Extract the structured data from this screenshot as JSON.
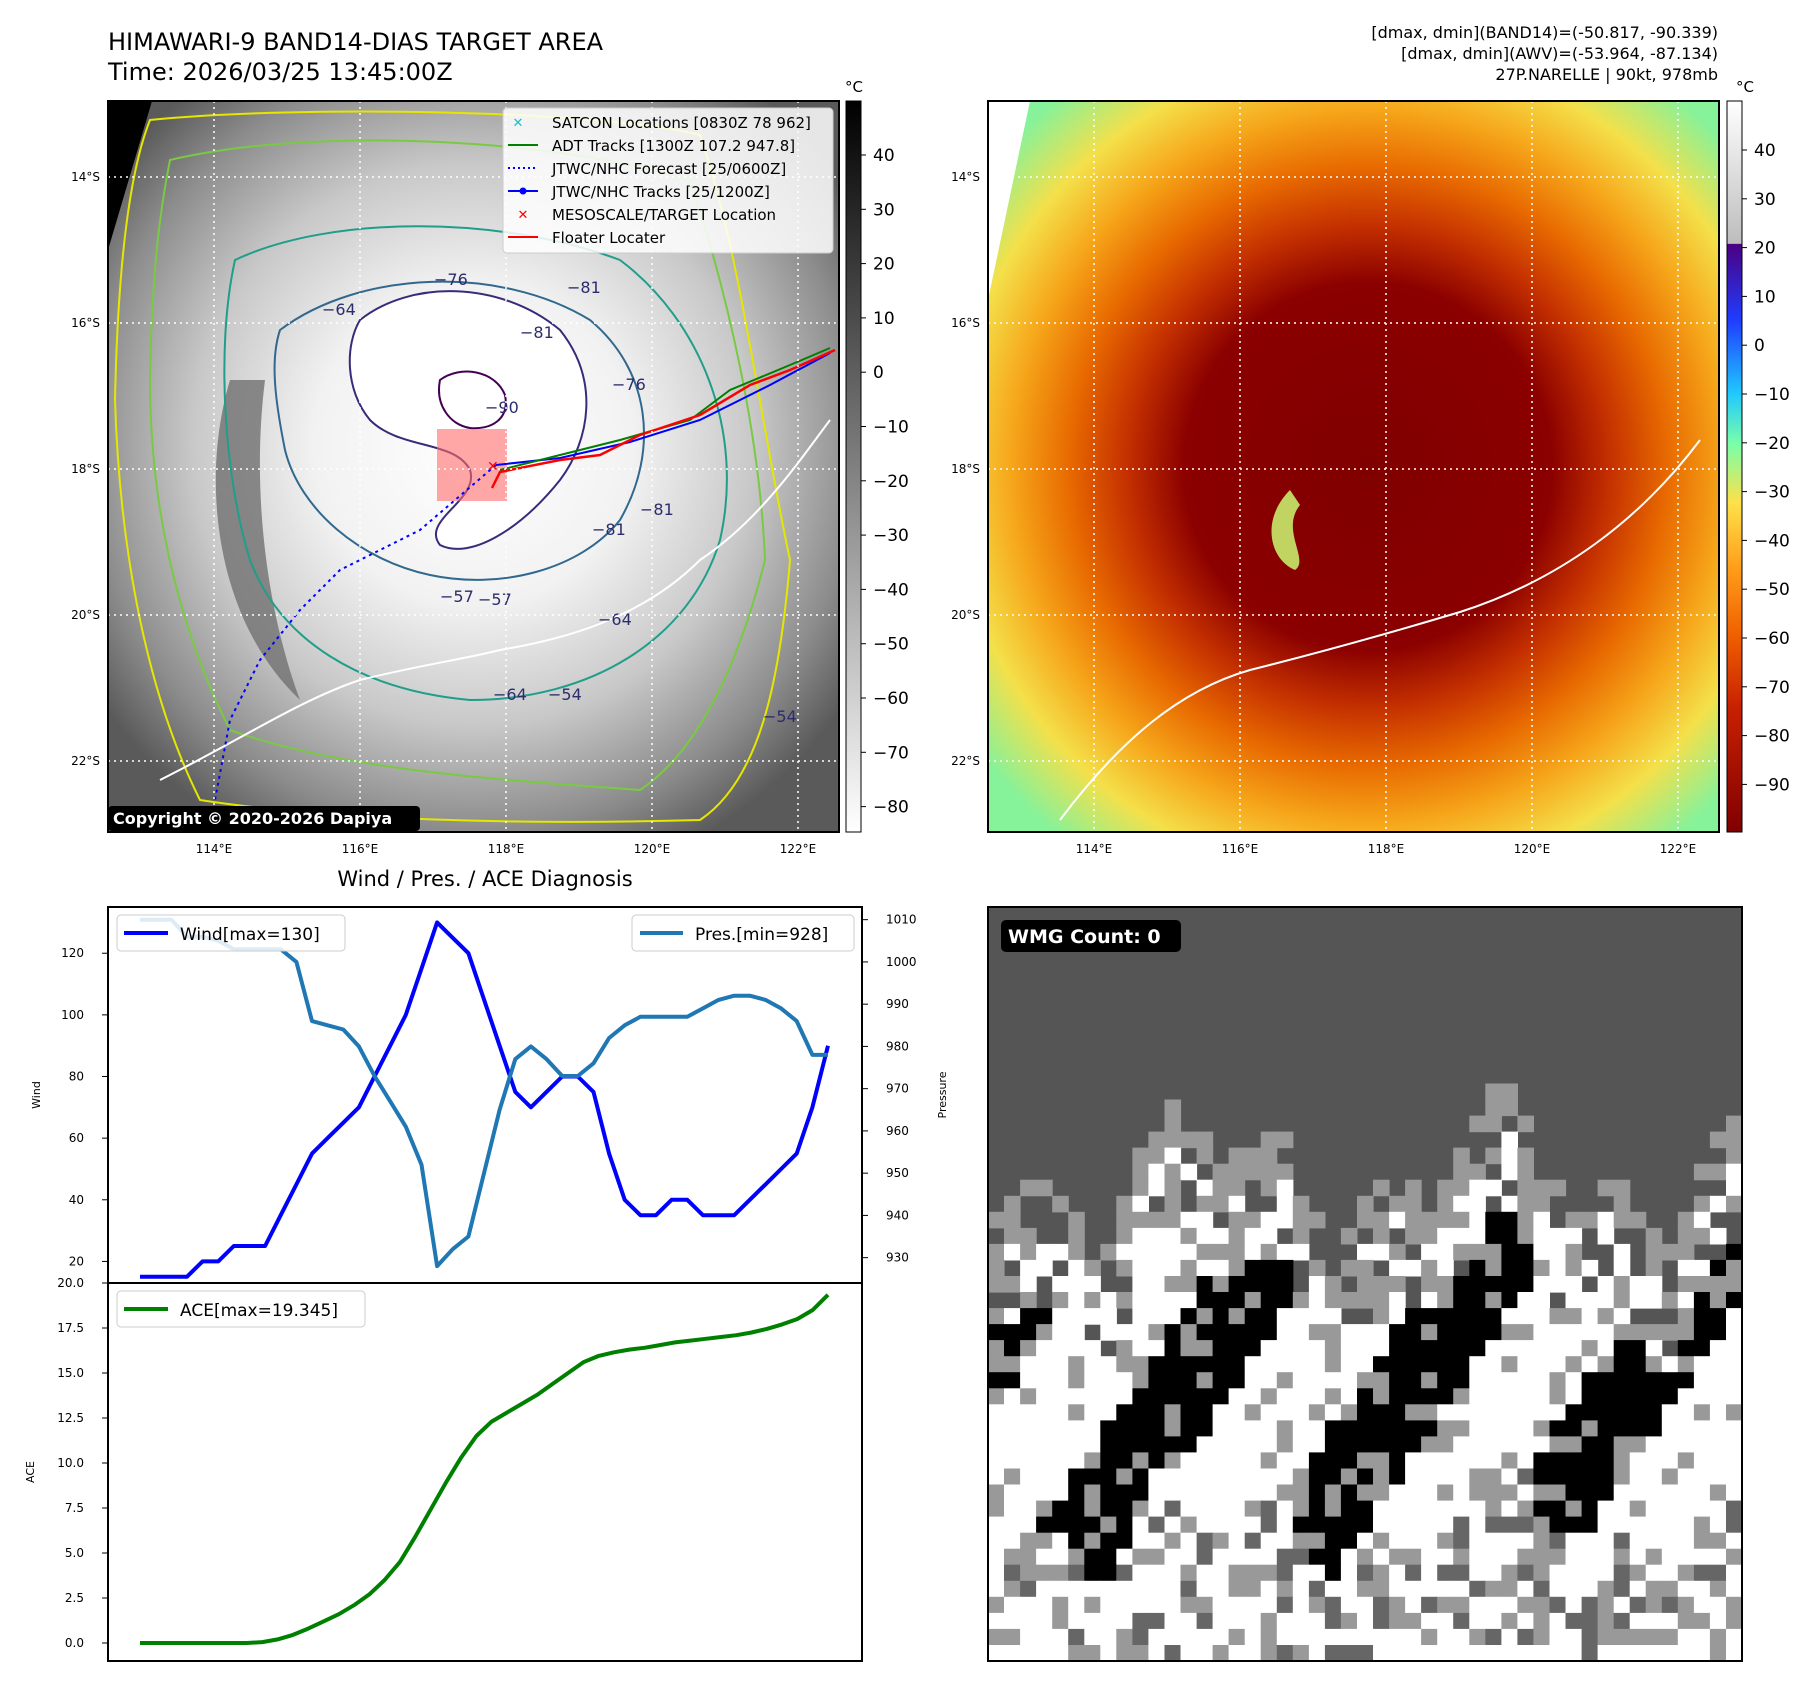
{
  "header": {
    "title_line1": "HIMAWARI-9 BAND14-DIAS TARGET AREA",
    "title_line2": "Time: 2026/03/25 13:45:00Z",
    "stats_line1": "[dmax, dmin](BAND14)=(-50.817, -90.339)",
    "stats_line2": "[dmax, dmin](AWV)=(-53.964, -87.134)",
    "stats_line3": "27P.NARELLE | 90kt, 978mb"
  },
  "map_axes": {
    "lat_labels": [
      "14°S",
      "16°S",
      "18°S",
      "20°S",
      "22°S"
    ],
    "lon_labels": [
      "114°E",
      "116°E",
      "118°E",
      "120°E",
      "122°E"
    ],
    "unit": "°C"
  },
  "ir_panel": {
    "copyright": "Copyright © 2020-2026 Dapiya",
    "colorbar_ticks": [
      "40",
      "30",
      "20",
      "10",
      "0",
      "−10",
      "−20",
      "−30",
      "−40",
      "−50",
      "−60",
      "−70",
      "−80"
    ],
    "contour_labels": [
      "−76",
      "−64",
      "−81",
      "−90",
      "−76",
      "−81",
      "−57",
      "−64",
      "−64",
      "−54",
      "−57",
      "−54",
      "−81",
      "−81"
    ],
    "legend": [
      {
        "label": "SATCON Locations [0830Z 78 962]",
        "color": "#17becf",
        "symbol": "x"
      },
      {
        "label": "ADT Tracks [1300Z 107.2 947.8]",
        "color": "#008000",
        "symbol": "line"
      },
      {
        "label": "JTWC/NHC Forecast [25/0600Z]",
        "color": "#0000ff",
        "symbol": "dotted"
      },
      {
        "label": "JTWC/NHC Tracks [25/1200Z]",
        "color": "#0000ff",
        "symbol": "line-dot"
      },
      {
        "label": "MESOSCALE/TARGET Location",
        "color": "#ff0000",
        "symbol": "x"
      },
      {
        "label": "Floater Locater",
        "color": "#ff0000",
        "symbol": "line"
      }
    ]
  },
  "awv_panel": {
    "colorbar_ticks": [
      "40",
      "30",
      "20",
      "10",
      "0",
      "−10",
      "−20",
      "−30",
      "−40",
      "−50",
      "−60",
      "−70",
      "−80",
      "−90"
    ]
  },
  "wmg_panel": {
    "label": "WMG Count: 0"
  },
  "chart_data": [
    {
      "type": "line",
      "title": "Wind / Pres. / ACE Diagnosis",
      "ylabel": "Wind",
      "y2label": "Pressure",
      "ylim": [
        13,
        135
      ],
      "y2lim": [
        924,
        1013
      ],
      "yticks": [
        "20",
        "40",
        "60",
        "80",
        "100",
        "120"
      ],
      "y2ticks": [
        "930",
        "940",
        "950",
        "960",
        "970",
        "980",
        "990",
        "1000",
        "1010"
      ],
      "series": [
        {
          "name": "Wind[max=130]",
          "axis": "left",
          "color": "#0000ff",
          "values": [
            15,
            15,
            15,
            15,
            20,
            20,
            25,
            25,
            25,
            35,
            45,
            55,
            60,
            65,
            70,
            80,
            90,
            100,
            115,
            130,
            125,
            120,
            105,
            90,
            75,
            70,
            75,
            80,
            80,
            75,
            55,
            40,
            35,
            35,
            40,
            40,
            35,
            35,
            35,
            40,
            45,
            50,
            55,
            70,
            90
          ]
        },
        {
          "name": "Pres.[min=928]",
          "axis": "right",
          "color": "#1f77b4",
          "values": [
            1010,
            1010,
            1010,
            1006,
            1006,
            1005,
            1003,
            1003,
            1003,
            1003,
            1000,
            986,
            985,
            984,
            980,
            973,
            967,
            961,
            952,
            928,
            932,
            935,
            950,
            965,
            977,
            980,
            977,
            973,
            973,
            976,
            982,
            985,
            987,
            987,
            987,
            987,
            989,
            991,
            992,
            992,
            991,
            989,
            986,
            978,
            978
          ]
        }
      ]
    },
    {
      "type": "line",
      "ylabel": "ACE",
      "ylim": [
        -1,
        20
      ],
      "yticks": [
        "0.0",
        "2.5",
        "5.0",
        "7.5",
        "10.0",
        "12.5",
        "15.0",
        "17.5",
        "20.0"
      ],
      "series": [
        {
          "name": "ACE[max=19.345]",
          "color": "#008000",
          "values": [
            0,
            0,
            0,
            0,
            0,
            0,
            0,
            0,
            0.05,
            0.2,
            0.45,
            0.8,
            1.2,
            1.6,
            2.1,
            2.7,
            3.5,
            4.5,
            5.9,
            7.4,
            8.9,
            10.3,
            11.5,
            12.3,
            12.8,
            13.3,
            13.8,
            14.4,
            15.0,
            15.6,
            15.95,
            16.15,
            16.3,
            16.4,
            16.55,
            16.7,
            16.8,
            16.9,
            17.0,
            17.1,
            17.25,
            17.45,
            17.7,
            18.0,
            18.5,
            19.345
          ]
        }
      ]
    }
  ]
}
